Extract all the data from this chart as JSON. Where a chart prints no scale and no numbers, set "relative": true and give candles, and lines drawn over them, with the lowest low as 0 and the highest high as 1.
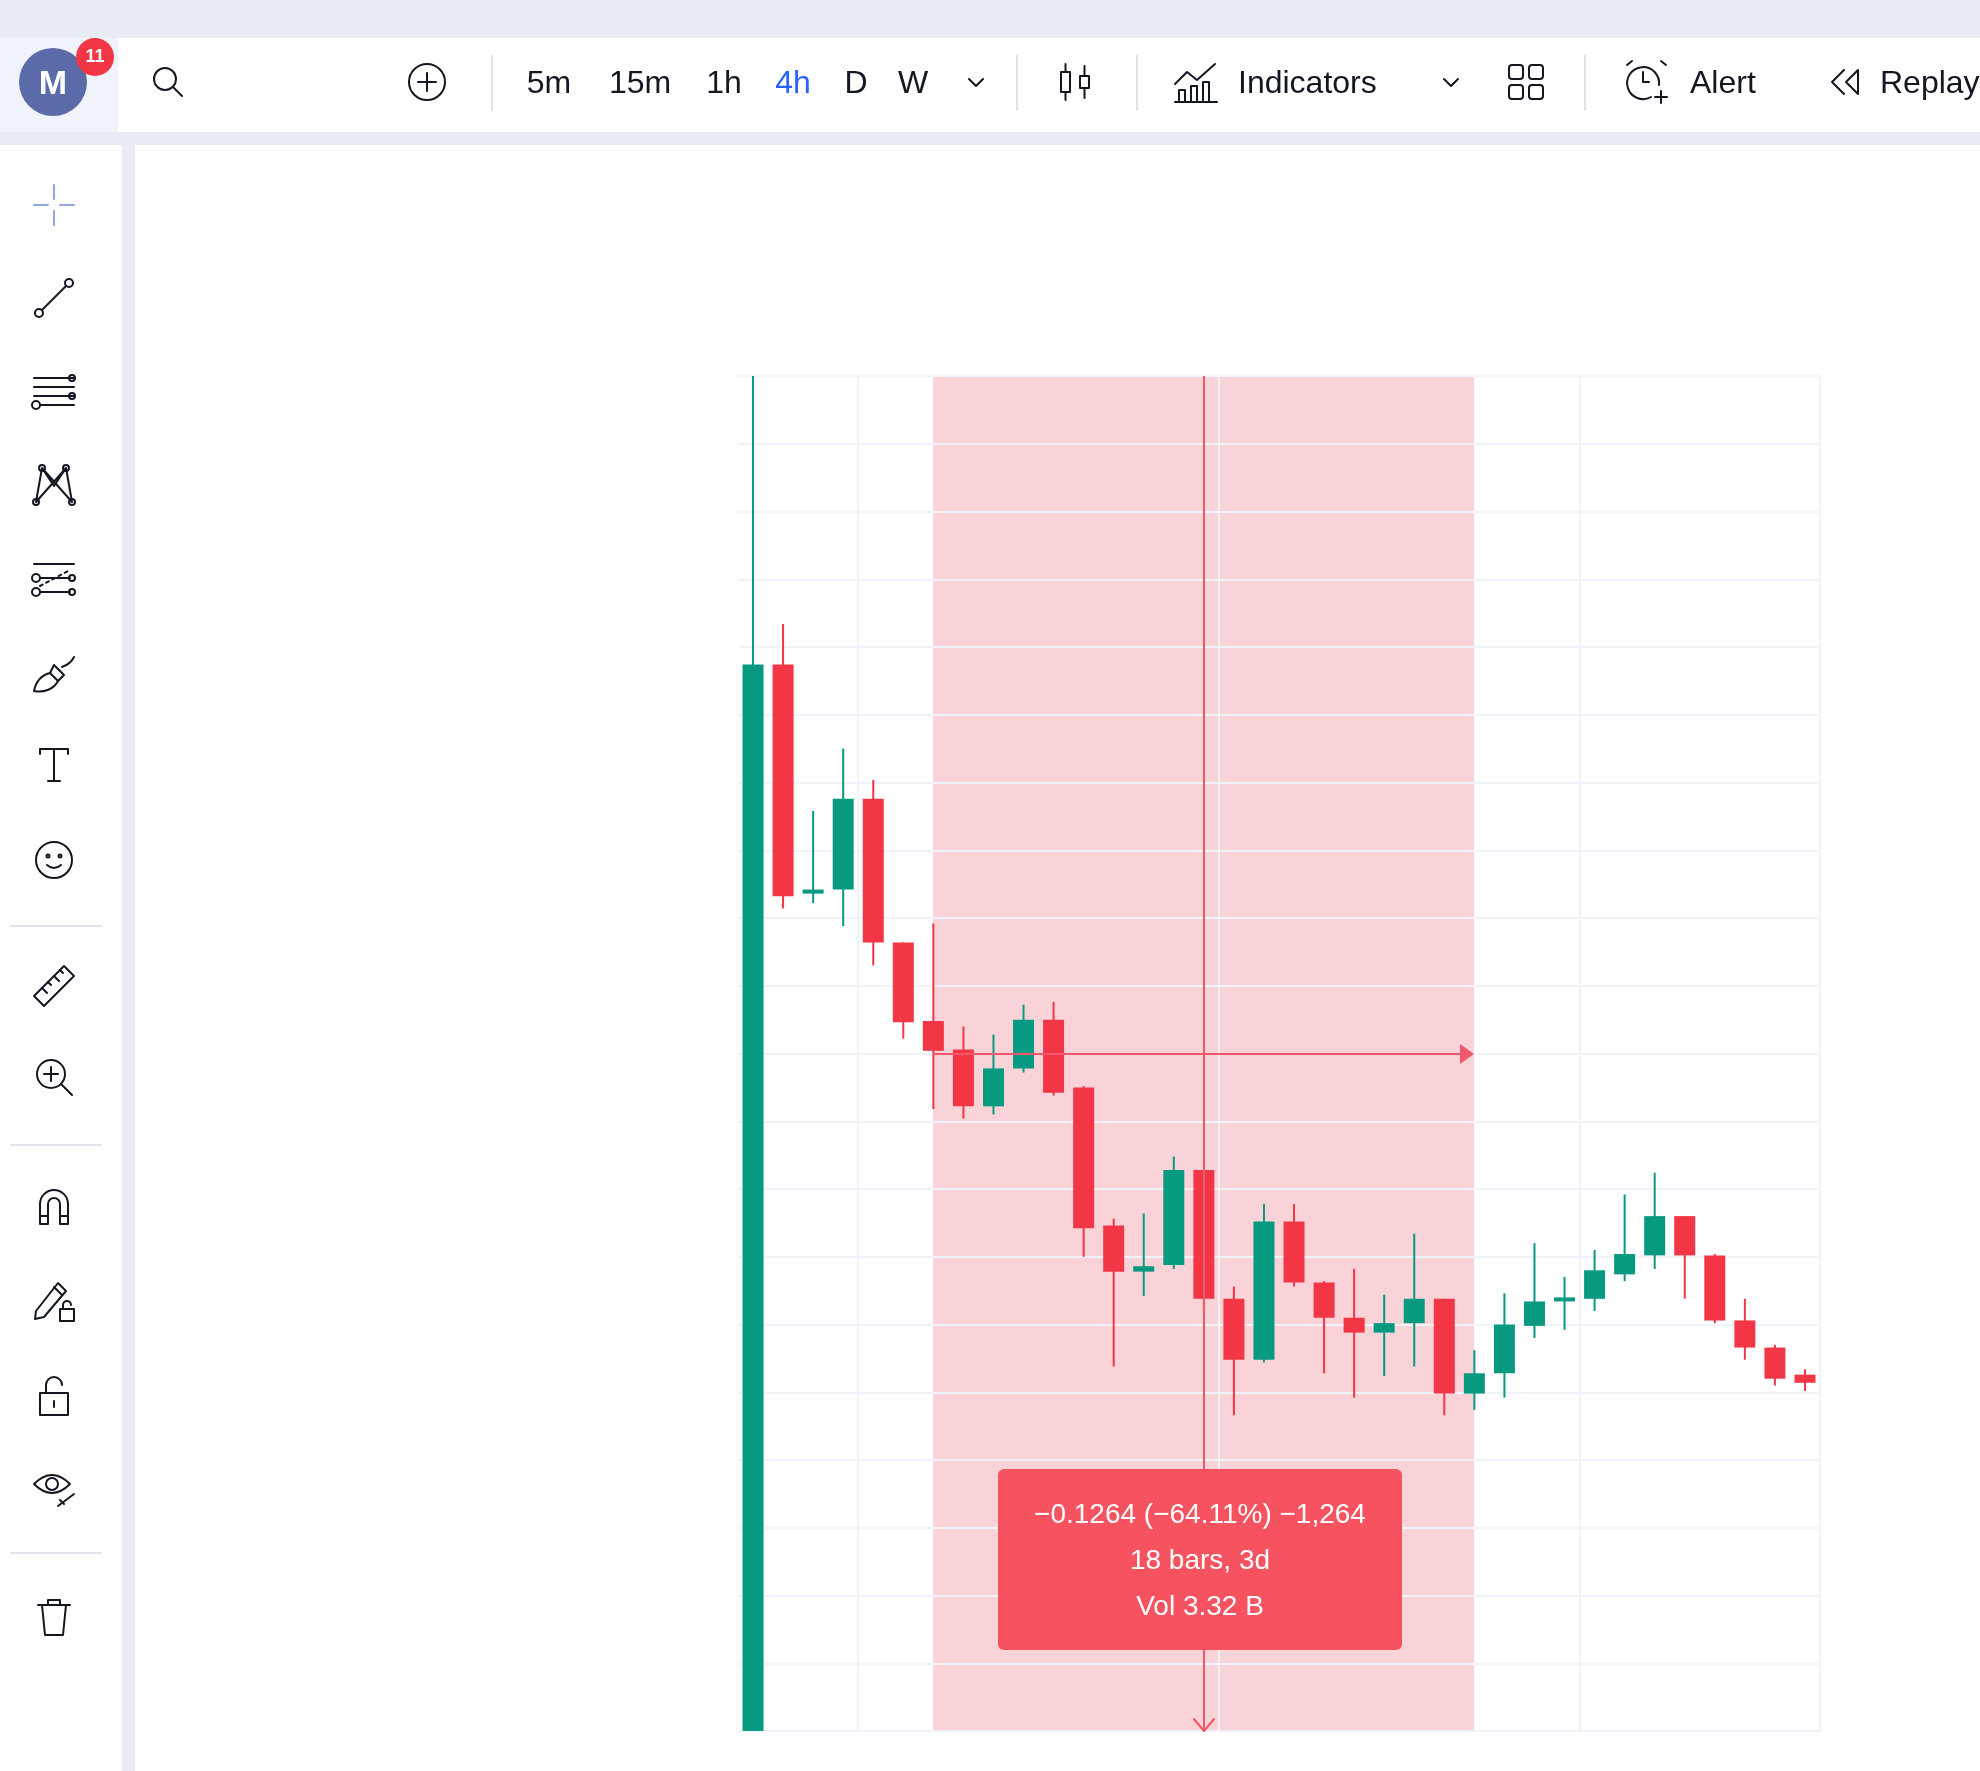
{
  "chart_data": {
    "type": "candlestick",
    "relative": true,
    "grid": true,
    "categories": [
      null,
      null,
      null,
      null,
      null,
      null,
      null,
      null,
      null,
      null,
      null,
      null,
      null,
      null,
      null,
      null,
      null,
      null,
      null,
      null,
      null,
      null,
      null,
      null,
      null,
      null,
      null,
      null,
      null,
      null,
      null,
      null,
      null,
      null,
      null,
      null
    ],
    "ohlc": [
      [
        0,
        1,
        0,
        0.787
      ],
      [
        0.787,
        0.817,
        0.607,
        0.616
      ],
      [
        0.618,
        0.679,
        0.611,
        0.621
      ],
      [
        0.621,
        0.725,
        0.594,
        0.688
      ],
      [
        0.688,
        0.702,
        0.565,
        0.582
      ],
      [
        0.582,
        0.582,
        0.511,
        0.523
      ],
      [
        0.524,
        0.596,
        0.459,
        0.502
      ],
      [
        0.503,
        0.52,
        0.452,
        0.461
      ],
      [
        0.461,
        0.514,
        0.455,
        0.489
      ],
      [
        0.489,
        0.536,
        0.486,
        0.525
      ],
      [
        0.525,
        0.538,
        0.469,
        0.471
      ],
      [
        0.475,
        0.476,
        0.35,
        0.371
      ],
      [
        0.373,
        0.378,
        0.269,
        0.339
      ],
      [
        0.339,
        0.382,
        0.321,
        0.343
      ],
      [
        0.344,
        0.424,
        0.341,
        0.414
      ],
      [
        0.414,
        0.416,
        0.31,
        0.319
      ],
      [
        0.319,
        0.328,
        0.233,
        0.274
      ],
      [
        0.274,
        0.389,
        0.272,
        0.376
      ],
      [
        0.376,
        0.389,
        0.328,
        0.331
      ],
      [
        0.331,
        0.332,
        0.264,
        0.305
      ],
      [
        0.305,
        0.341,
        0.246,
        0.294
      ],
      [
        0.294,
        0.322,
        0.262,
        0.301
      ],
      [
        0.301,
        0.367,
        0.269,
        0.319
      ],
      [
        0.319,
        0.319,
        0.233,
        0.249
      ],
      [
        0.249,
        0.281,
        0.237,
        0.264
      ],
      [
        0.264,
        0.323,
        0.246,
        0.3
      ],
      [
        0.299,
        0.36,
        0.29,
        0.317
      ],
      [
        0.317,
        0.335,
        0.296,
        0.32
      ],
      [
        0.319,
        0.355,
        0.31,
        0.34
      ],
      [
        0.337,
        0.396,
        0.332,
        0.352
      ],
      [
        0.351,
        0.412,
        0.341,
        0.38
      ],
      [
        0.38,
        0.38,
        0.319,
        0.351
      ],
      [
        0.351,
        0.352,
        0.301,
        0.303
      ],
      [
        0.303,
        0.319,
        0.274,
        0.283
      ],
      [
        0.283,
        0.285,
        0.255,
        0.26
      ],
      [
        0.263,
        0.267,
        0.251,
        0.257
      ]
    ],
    "colors": [
      "#089981",
      "#f23645",
      "#089981",
      "#089981",
      "#f23645",
      "#f23645",
      "#f23645",
      "#f23645",
      "#089981",
      "#089981",
      "#f23645",
      "#f23645",
      "#f23645",
      "#089981",
      "#089981",
      "#f23645",
      "#f23645",
      "#089981",
      "#f23645",
      "#f23645",
      "#f23645",
      "#089981",
      "#089981",
      "#f23645",
      "#089981",
      "#089981",
      "#089981",
      "#089981",
      "#089981",
      "#089981",
      "#089981",
      "#f23645",
      "#f23645",
      "#f23645",
      "#f23645",
      "#f23645"
    ],
    "annotations": [
      "−0.1264 (−64.11%) −1,264",
      "18 bars, 3d",
      "Vol 3.32 B",
      "M",
      "11",
      "5m",
      "15m",
      "1h",
      "4h",
      "D",
      "W",
      "Indicators",
      "Alert",
      "Replay"
    ]
  }
}
